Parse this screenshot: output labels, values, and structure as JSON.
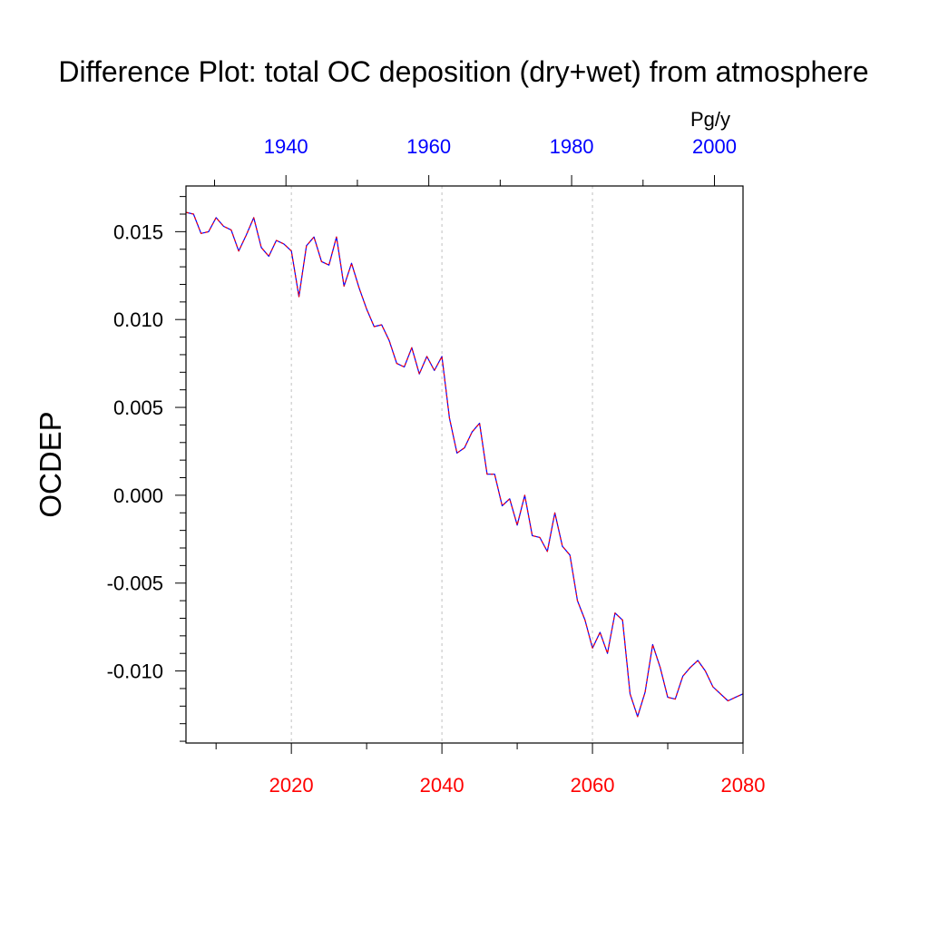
{
  "colors": {
    "top_axis": "#0000ff",
    "bottom_axis": "#ff0000",
    "line_primary": "#0000ff",
    "line_secondary": "#ff0000",
    "grid": "#c0c0c0"
  },
  "chart_data": {
    "type": "line",
    "title": "Difference Plot: total OC deposition (dry+wet) from atmosphere",
    "ylabel": "OCDEP",
    "units": "Pg/y",
    "grid": "vertical dashed",
    "x_bottom": {
      "ticks": [
        2020,
        2040,
        2060,
        2080
      ],
      "labels": [
        "2020",
        "2040",
        "2060",
        "2080"
      ],
      "range": [
        2006,
        2080
      ]
    },
    "x_top": {
      "ticks": [
        1940,
        1960,
        1980,
        2000
      ],
      "labels": [
        "1940",
        "1960",
        "1980",
        "2000"
      ],
      "range": [
        1926,
        2004
      ]
    },
    "y_ticks": [
      0.015,
      0.01,
      0.005,
      0.0,
      -0.005,
      -0.01
    ],
    "y_tick_labels": [
      "0.015",
      "0.010",
      "0.005",
      "0.000",
      "-0.005",
      "-0.010"
    ],
    "ylim": [
      -0.0141,
      0.0176
    ],
    "series": [
      {
        "x": [
          2006,
          2007,
          2008,
          2009,
          2010,
          2011,
          2012,
          2013,
          2014,
          2015,
          2016,
          2017,
          2018,
          2019,
          2020,
          2021,
          2022,
          2023,
          2024,
          2025,
          2026,
          2027,
          2028,
          2029,
          2030,
          2031,
          2032,
          2033,
          2034,
          2035,
          2036,
          2037,
          2038,
          2039,
          2040,
          2041,
          2042,
          2043,
          2044,
          2045,
          2046,
          2047,
          2048,
          2049,
          2050,
          2051,
          2052,
          2053,
          2054,
          2055,
          2056,
          2057,
          2058,
          2059,
          2060,
          2061,
          2062,
          2063,
          2064,
          2065,
          2066,
          2067,
          2068,
          2069,
          2070,
          2071,
          2072,
          2073,
          2074,
          2075,
          2076,
          2077,
          2078,
          2079,
          2080
        ],
        "values": [
          0.0161,
          0.016,
          0.0149,
          0.015,
          0.0158,
          0.0153,
          0.0151,
          0.0139,
          0.0148,
          0.0158,
          0.0141,
          0.0136,
          0.0145,
          0.0143,
          0.0139,
          0.0113,
          0.0142,
          0.0147,
          0.0133,
          0.0131,
          0.0147,
          0.0119,
          0.0132,
          0.0118,
          0.0106,
          0.0096,
          0.0097,
          0.0088,
          0.0075,
          0.0073,
          0.0084,
          0.0069,
          0.0079,
          0.0071,
          0.0079,
          0.0044,
          0.0024,
          0.0027,
          0.0036,
          0.0041,
          0.0012,
          0.0012,
          -0.0006,
          -0.0002,
          -0.0017,
          0.0,
          -0.0023,
          -0.0024,
          -0.0032,
          -0.001,
          -0.0029,
          -0.0034,
          -0.006,
          -0.0071,
          -0.0087,
          -0.0078,
          -0.009,
          -0.0067,
          -0.0071,
          -0.0113,
          -0.0126,
          -0.0112,
          -0.0085,
          -0.0098,
          -0.0115,
          -0.0116,
          -0.0103,
          -0.0098,
          -0.0094,
          -0.01,
          -0.0109,
          -0.0113,
          -0.0117,
          -0.0115,
          -0.0113
        ]
      }
    ]
  }
}
